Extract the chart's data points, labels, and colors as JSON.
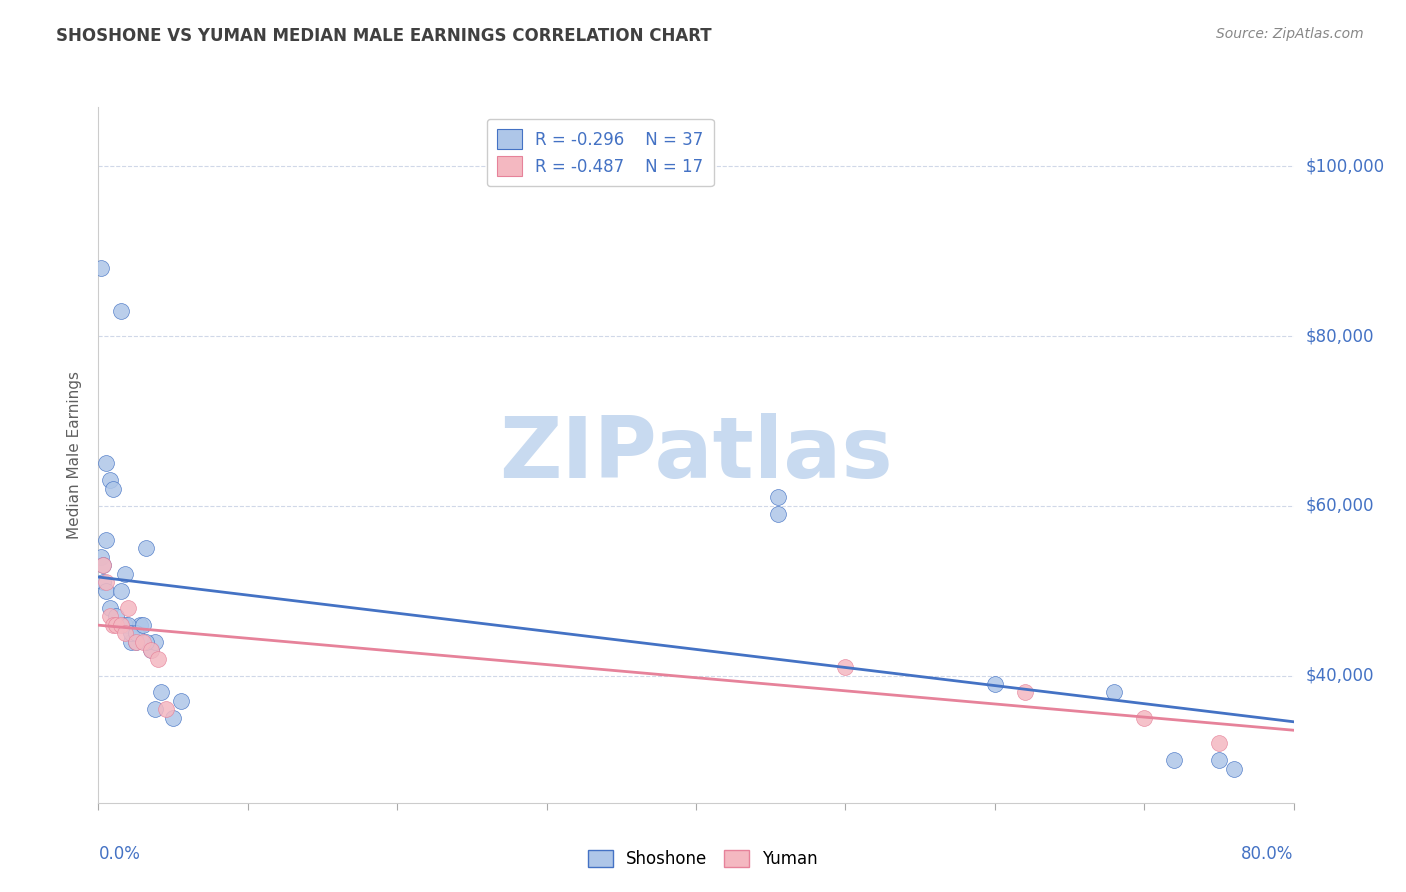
{
  "title": "SHOSHONE VS YUMAN MEDIAN MALE EARNINGS CORRELATION CHART",
  "source": "Source: ZipAtlas.com",
  "ylabel": "Median Male Earnings",
  "yticks": [
    40000,
    60000,
    80000,
    100000
  ],
  "ytick_labels": [
    "$40,000",
    "$60,000",
    "$80,000",
    "$100,000"
  ],
  "xlim": [
    0.0,
    0.8
  ],
  "ylim": [
    25000,
    107000
  ],
  "legend_r_shoshone": "-0.296",
  "legend_n_shoshone": "37",
  "legend_r_yuman": "-0.487",
  "legend_n_yuman": "17",
  "shoshone_color": "#aec6e8",
  "yuman_color": "#f4b8c1",
  "shoshone_line_color": "#4472c4",
  "yuman_line_color": "#e6829a",
  "title_color": "#404040",
  "axis_label_color": "#4472c4",
  "background_color": "#ffffff",
  "shoshone_x": [
    0.002,
    0.015,
    0.032,
    0.002,
    0.005,
    0.003,
    0.003,
    0.005,
    0.008,
    0.012,
    0.018,
    0.022,
    0.025,
    0.028,
    0.035,
    0.038,
    0.02,
    0.022,
    0.025,
    0.03,
    0.032,
    0.038,
    0.042,
    0.05,
    0.055,
    0.005,
    0.008,
    0.01,
    0.015,
    0.018,
    0.455,
    0.455,
    0.6,
    0.68,
    0.72,
    0.75,
    0.76
  ],
  "shoshone_y": [
    88000,
    83000,
    55000,
    54000,
    56000,
    53000,
    51000,
    50000,
    48000,
    47000,
    46000,
    44000,
    44000,
    46000,
    43000,
    44000,
    46000,
    45000,
    45000,
    46000,
    44000,
    36000,
    38000,
    35000,
    37000,
    65000,
    63000,
    62000,
    50000,
    52000,
    61000,
    59000,
    39000,
    38000,
    30000,
    30000,
    29000
  ],
  "yuman_x": [
    0.003,
    0.005,
    0.008,
    0.01,
    0.012,
    0.015,
    0.018,
    0.02,
    0.025,
    0.03,
    0.035,
    0.04,
    0.045,
    0.5,
    0.62,
    0.7,
    0.75
  ],
  "yuman_y": [
    53000,
    51000,
    47000,
    46000,
    46000,
    46000,
    45000,
    48000,
    44000,
    44000,
    43000,
    42000,
    36000,
    41000,
    38000,
    35000,
    32000
  ],
  "watermark": "ZIPatlas",
  "watermark_color": "#c8daf0",
  "grid_color": "#d0d8e8",
  "grid_style": "--"
}
